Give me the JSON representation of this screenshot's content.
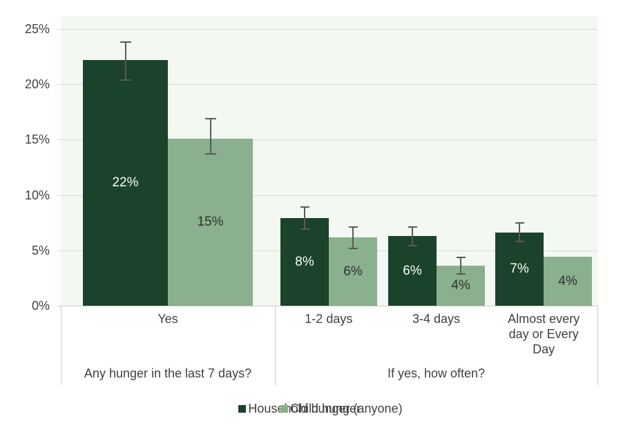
{
  "colors": {
    "household_green": "#1b422b",
    "child_green": "#8ab08d",
    "plot_background": "#f3f8f3",
    "gridline": "#d9d9d9",
    "axis_line": "#c9c9c9",
    "error_bar": "#595959",
    "text": "#404040",
    "label_on_dark": "#ffffff",
    "label_on_light": "#303030"
  },
  "chart_data": {
    "type": "bar",
    "title": "",
    "xlabel": "",
    "ylabel": "",
    "ylim": [
      0,
      25
    ],
    "ytick_labels": [
      "0%",
      "5%",
      "10%",
      "15%",
      "20%",
      "25%"
    ],
    "grid": true,
    "legend_position": "bottom",
    "error_bars": true,
    "series": [
      {
        "name": "Household hunger (anyone)",
        "color": "#1b422b",
        "label_color": "#ffffff"
      },
      {
        "name": "Child hunger",
        "color": "#8ab08d",
        "label_color": "#303030"
      }
    ],
    "groups": [
      {
        "label": "Any hunger in the last 7 days?",
        "categories": [
          {
            "label": "Yes",
            "bars": [
              {
                "series": "Household hunger (anyone)",
                "value": 22.2,
                "label": "22%",
                "err_low": 20.4,
                "err_high": 23.8
              },
              {
                "series": "Child hunger",
                "value": 15.1,
                "label": "15%",
                "err_low": 13.7,
                "err_high": 16.9
              }
            ]
          }
        ]
      },
      {
        "label": "If yes, how often?",
        "categories": [
          {
            "label": "1-2 days",
            "bars": [
              {
                "series": "Household hunger (anyone)",
                "value": 7.9,
                "label": "8%",
                "err_low": 6.9,
                "err_high": 8.9
              },
              {
                "series": "Child hunger",
                "value": 6.2,
                "label": "6%",
                "err_low": 5.2,
                "err_high": 7.1
              }
            ]
          },
          {
            "label": "3-4 days",
            "bars": [
              {
                "series": "Household hunger (anyone)",
                "value": 6.3,
                "label": "6%",
                "err_low": 5.4,
                "err_high": 7.1
              },
              {
                "series": "Child hunger",
                "value": 3.6,
                "label": "4%",
                "err_low": 2.85,
                "err_high": 4.35
              }
            ]
          },
          {
            "label": "Almost every day or Every Day",
            "bars": [
              {
                "series": "Household hunger (anyone)",
                "value": 6.6,
                "label": "7%",
                "err_low": 5.8,
                "err_high": 7.5
              },
              {
                "series": "Child hunger",
                "value": 4.4,
                "label": "4%",
                "err_low": null,
                "err_high": null
              }
            ]
          }
        ]
      }
    ]
  }
}
